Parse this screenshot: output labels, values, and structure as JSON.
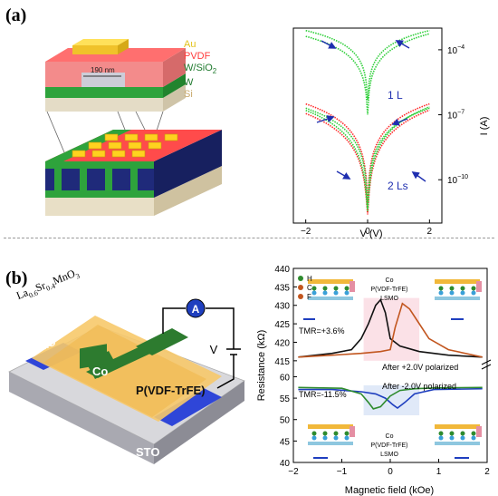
{
  "panel_a": {
    "label": "(a)",
    "stack_legend": [
      {
        "text": "Au",
        "color": "#e3c21a"
      },
      {
        "text": "PVDF",
        "color": "#ff3b3b"
      },
      {
        "text": "W/SiO",
        "sub": "2",
        "color": "#1f7a2e"
      },
      {
        "text": "W",
        "color": "#1f7a2e"
      },
      {
        "text": "Si",
        "color": "#c8a86a"
      }
    ],
    "dimension_label": "190 nm",
    "chart_data": {
      "type": "line",
      "xlabel": "V (V)",
      "ylabel": "I (A)",
      "xlim": [
        -2.4,
        2.4
      ],
      "xticks": [
        -2,
        0,
        2
      ],
      "yticks": [
        "10^-4",
        "10^-7",
        "10^-10"
      ],
      "annotations": [
        "1 L",
        "2 Ls"
      ],
      "series_colors": [
        "#ff2a2a",
        "#2fcf3a"
      ],
      "arrow_color": "#1f2fb0"
    }
  },
  "panel_b": {
    "label": "(b)",
    "device": {
      "formula": "La0.6Sr0.4MnO3",
      "formula_parts": [
        {
          "t": "La",
          "sub": false
        },
        {
          "t": "0.6",
          "sub": true
        },
        {
          "t": "Sr",
          "sub": false
        },
        {
          "t": "0.4",
          "sub": true
        },
        {
          "t": "MnO",
          "sub": false
        },
        {
          "t": "3",
          "sub": true
        }
      ],
      "lsmo": "LSMO",
      "co": "Co",
      "pvdf": "P(VDF-TrFE)",
      "sto": "STO",
      "meter": "A",
      "voltage": "V"
    },
    "chart_data": {
      "type": "line",
      "xlabel": "Magnetic field (kOe)",
      "ylabel": "Resistance (kΩ)",
      "xlim": [
        -2,
        2
      ],
      "ylim": [
        40,
        440
      ],
      "axis_break": [
        60,
        410
      ],
      "xticks": [
        -2,
        -1,
        0,
        1,
        2
      ],
      "yticks": [
        40,
        45,
        50,
        55,
        60,
        415,
        420,
        425,
        430,
        435,
        440
      ],
      "legend": [
        "H",
        "C",
        "F"
      ],
      "annotations": {
        "tmr_top": "TMR=+3.6%",
        "tmr_bottom": "TMR=-11.5%",
        "after_pos": "After +2.0V polarized",
        "after_neg": "After -2.0V polarized",
        "inset_co": "Co",
        "inset_pvdf": "P(VDF-TrFE)",
        "inset_lsmo": "LSMO"
      },
      "series": [
        {
          "color": "#111111",
          "x": [
            -1.9,
            -1.2,
            -0.8,
            -0.6,
            -0.45,
            -0.3,
            -0.2,
            -0.1,
            0.0,
            0.2,
            0.6,
            1.2,
            1.9
          ],
          "y": [
            416,
            417,
            418,
            421,
            425,
            430,
            431.5,
            428,
            421,
            419,
            417.5,
            416.5,
            416
          ]
        },
        {
          "color": "#c2561f",
          "x": [
            -1.9,
            -1.2,
            -0.6,
            -0.2,
            0.0,
            0.1,
            0.25,
            0.4,
            0.55,
            0.8,
            1.2,
            1.9
          ],
          "y": [
            416,
            416.5,
            417,
            417.5,
            418,
            424,
            430.5,
            429,
            426,
            421,
            418,
            416
          ]
        },
        {
          "color": "#1f3fbf",
          "x": [
            -1.9,
            -1.2,
            -0.6,
            -0.3,
            -0.1,
            0.05,
            0.15,
            0.3,
            0.5,
            0.9,
            1.9
          ],
          "y": [
            57,
            57,
            56.5,
            56,
            55,
            53.5,
            52.7,
            54,
            56,
            57,
            57.2
          ]
        },
        {
          "color": "#2e8b2e",
          "x": [
            -1.9,
            -1.0,
            -0.6,
            -0.45,
            -0.35,
            -0.2,
            0.0,
            0.2,
            0.5,
            1.0,
            1.9
          ],
          "y": [
            57.5,
            57.3,
            56,
            54,
            52.5,
            53,
            55.5,
            56.8,
            57.2,
            57.4,
            57.5
          ]
        }
      ]
    }
  }
}
